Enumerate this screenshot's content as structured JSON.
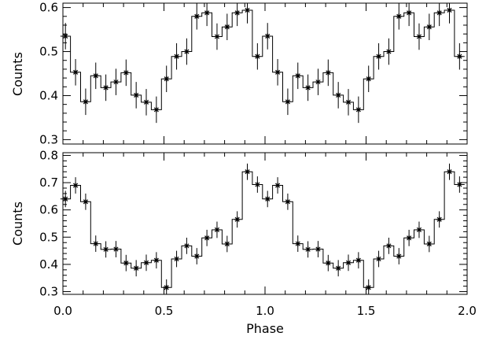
{
  "chart_data": [
    {
      "type": "line",
      "style": "step-histogram with error bars and star markers",
      "xlabel": "",
      "ylabel": "Counts",
      "xlim": [
        0.0,
        2.0
      ],
      "ylim": [
        0.29,
        0.61
      ],
      "yticks": [
        0.3,
        0.4,
        0.5,
        0.6
      ],
      "ytick_labels": [
        "0.3",
        "0.4",
        "0.5",
        "0.6"
      ],
      "x": [
        0.0125,
        0.0625,
        0.1125,
        0.1625,
        0.2125,
        0.2625,
        0.3125,
        0.3625,
        0.4125,
        0.4625,
        0.5125,
        0.5625,
        0.6125,
        0.6625,
        0.7125,
        0.7625,
        0.8125,
        0.8625,
        0.9125,
        0.9625,
        1.0125,
        1.0625,
        1.1125,
        1.1625,
        1.2125,
        1.2625,
        1.3125,
        1.3625,
        1.4125,
        1.4625,
        1.5125,
        1.5625,
        1.6125,
        1.6625,
        1.7125,
        1.7625,
        1.8125,
        1.8625,
        1.9125,
        1.9625
      ],
      "y": [
        0.535,
        0.453,
        0.386,
        0.445,
        0.418,
        0.431,
        0.452,
        0.401,
        0.385,
        0.368,
        0.438,
        0.489,
        0.5,
        0.58,
        0.588,
        0.534,
        0.556,
        0.588,
        0.594,
        0.489,
        0.535,
        0.453,
        0.386,
        0.445,
        0.418,
        0.431,
        0.452,
        0.401,
        0.385,
        0.368,
        0.438,
        0.489,
        0.5,
        0.58,
        0.588,
        0.534,
        0.556,
        0.588,
        0.594,
        0.489
      ],
      "yerr": 0.03
    },
    {
      "type": "line",
      "style": "step-histogram with error bars and star markers",
      "xlabel": "Phase",
      "ylabel": "Counts",
      "xlim": [
        0.0,
        2.0
      ],
      "ylim": [
        0.29,
        0.81
      ],
      "xticks": [
        0.0,
        0.5,
        1.0,
        1.5,
        2.0
      ],
      "xtick_labels": [
        "0.0",
        "0.5",
        "1.0",
        "1.5",
        "2.0"
      ],
      "yticks": [
        0.3,
        0.4,
        0.5,
        0.6,
        0.7,
        0.8
      ],
      "ytick_labels": [
        "0.3",
        "0.4",
        "0.5",
        "0.6",
        "0.7",
        "0.8"
      ],
      "x": [
        0.0125,
        0.0625,
        0.1125,
        0.1625,
        0.2125,
        0.2625,
        0.3125,
        0.3625,
        0.4125,
        0.4625,
        0.5125,
        0.5625,
        0.6125,
        0.6625,
        0.7125,
        0.7625,
        0.8125,
        0.8625,
        0.9125,
        0.9625,
        1.0125,
        1.0625,
        1.1125,
        1.1625,
        1.2125,
        1.2625,
        1.3125,
        1.3625,
        1.4125,
        1.4625,
        1.5125,
        1.5625,
        1.6125,
        1.6625,
        1.7125,
        1.7625,
        1.8125,
        1.8625,
        1.9125,
        1.9625
      ],
      "y": [
        0.64,
        0.69,
        0.63,
        0.476,
        0.455,
        0.456,
        0.405,
        0.386,
        0.406,
        0.415,
        0.315,
        0.42,
        0.468,
        0.43,
        0.497,
        0.527,
        0.475,
        0.565,
        0.74,
        0.693,
        0.64,
        0.69,
        0.63,
        0.476,
        0.455,
        0.456,
        0.405,
        0.386,
        0.406,
        0.415,
        0.315,
        0.42,
        0.468,
        0.43,
        0.497,
        0.527,
        0.475,
        0.565,
        0.74,
        0.693
      ],
      "yerr": 0.03
    }
  ]
}
